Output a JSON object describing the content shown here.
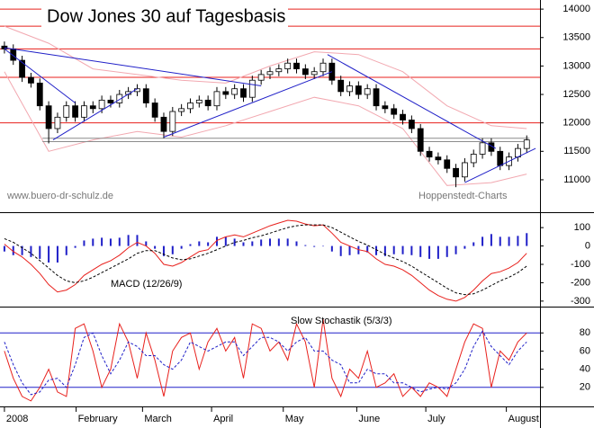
{
  "chart_data": [
    {
      "type": "candlestick",
      "title": "Dow Jones 30 auf Tagesbasis",
      "annotations": [
        "www.buero-dr-schulz.de",
        "Hoppenstedt-Charts"
      ],
      "xlim": [
        -0.5,
        60.5
      ],
      "ylim": [
        10430,
        14160
      ],
      "yticks": [
        11000,
        11500,
        12000,
        12500,
        13000,
        13500,
        14000
      ],
      "open": [
        13350,
        13300,
        13100,
        12800,
        12700,
        12300,
        11900,
        12100,
        12300,
        12100,
        12300,
        12250,
        12400,
        12350,
        12500,
        12550,
        12600,
        12350,
        12100,
        11850,
        12200,
        12250,
        12350,
        12400,
        12300,
        12550,
        12500,
        12600,
        12450,
        12750,
        12850,
        12900,
        12950,
        13050,
        12950,
        12850,
        12900,
        13050,
        12750,
        12550,
        12650,
        12500,
        12600,
        12300,
        12250,
        12150,
        12050,
        11900,
        11500,
        11400,
        11350,
        11200,
        11050,
        11300,
        11450,
        11650,
        11500,
        11250,
        11400,
        11550
      ],
      "high": [
        13430,
        13380,
        13180,
        12880,
        12780,
        12380,
        12180,
        12380,
        12380,
        12380,
        12380,
        12480,
        12480,
        12580,
        12630,
        12680,
        12680,
        12430,
        12180,
        12280,
        12330,
        12430,
        12480,
        12480,
        12630,
        12630,
        12680,
        12680,
        12830,
        12930,
        12980,
        13030,
        13130,
        13130,
        13030,
        12980,
        13130,
        13130,
        12830,
        12730,
        12730,
        12680,
        12680,
        12380,
        12330,
        12230,
        12130,
        11980,
        11580,
        11480,
        11430,
        11280,
        11380,
        11530,
        11730,
        11730,
        11580,
        11480,
        11630,
        11780
      ],
      "low": [
        13220,
        13020,
        12720,
        12620,
        12220,
        11640,
        11820,
        12020,
        12020,
        12020,
        12170,
        12170,
        12270,
        12270,
        12420,
        12470,
        12270,
        12020,
        11730,
        11770,
        12120,
        12170,
        12270,
        12220,
        12220,
        12420,
        12420,
        12370,
        12370,
        12670,
        12770,
        12820,
        12870,
        12870,
        12770,
        12770,
        12820,
        12670,
        12470,
        12470,
        12420,
        12420,
        12220,
        12170,
        12070,
        11970,
        11820,
        11420,
        11320,
        11270,
        11120,
        10870,
        10970,
        11220,
        11370,
        11420,
        11170,
        11170,
        11320,
        11470
      ],
      "close": [
        13300,
        13100,
        12800,
        12700,
        12300,
        11900,
        12100,
        12300,
        12100,
        12300,
        12250,
        12400,
        12350,
        12500,
        12550,
        12600,
        12350,
        12100,
        11850,
        12200,
        12250,
        12350,
        12400,
        12300,
        12550,
        12500,
        12600,
        12450,
        12750,
        12850,
        12900,
        12950,
        13050,
        12950,
        12850,
        12900,
        13050,
        12750,
        12550,
        12650,
        12500,
        12600,
        12300,
        12250,
        12150,
        12050,
        11900,
        11500,
        11400,
        11350,
        11200,
        11050,
        11300,
        11450,
        11650,
        11500,
        11250,
        11400,
        11550,
        11700
      ],
      "up_color": "#ffffff",
      "down_color": "#000000",
      "hlines": [
        14000,
        13700,
        13300,
        12800,
        12000
      ],
      "hline_color": "#e8201c",
      "support": {
        "x": [
          4.3,
          59.3
        ],
        "values": [
          11670,
          11730
        ],
        "color": "#8c8c8c"
      },
      "trend_color": "#2020c8",
      "trendlines": [
        {
          "x": [
            0,
            8
          ],
          "values": [
            13300,
            12350
          ]
        },
        {
          "x": [
            0,
            29
          ],
          "values": [
            13320,
            12650
          ]
        },
        {
          "x": [
            5.5,
            15
          ],
          "values": [
            11700,
            12600
          ]
        },
        {
          "x": [
            18,
            37
          ],
          "values": [
            11750,
            12900
          ]
        },
        {
          "x": [
            36.5,
            55.5
          ],
          "values": [
            13200,
            11550
          ]
        },
        {
          "x": [
            52,
            60
          ],
          "values": [
            10950,
            11550
          ]
        }
      ],
      "bands": [
        {
          "color": "#f2a8b0",
          "x": [
            0,
            5,
            10,
            15,
            20,
            25,
            30,
            35,
            40,
            45,
            50,
            55,
            59
          ],
          "values": [
            13700,
            13400,
            12950,
            12850,
            12750,
            12700,
            13000,
            13250,
            13200,
            12900,
            12300,
            11950,
            11900
          ]
        },
        {
          "color": "#f2a8b0",
          "x": [
            0,
            5,
            10,
            15,
            20,
            25,
            30,
            35,
            40,
            45,
            50,
            55,
            59
          ],
          "values": [
            12900,
            11500,
            11700,
            11850,
            11750,
            11950,
            12200,
            12450,
            12300,
            11900,
            10900,
            10950,
            11100
          ]
        }
      ]
    },
    {
      "type": "line",
      "title": "MACD (12/26/9)",
      "xlim": [
        -0.5,
        60.5
      ],
      "ylim": [
        -330,
        179
      ],
      "yticks": [
        100,
        0,
        -100,
        -200,
        -300
      ],
      "series": [
        {
          "kind": "bar",
          "color": "#2020c8",
          "values": [
            -30,
            -50,
            -50,
            -60,
            -70,
            -90,
            -90,
            -50,
            -10,
            30,
            40,
            45,
            40,
            45,
            60,
            60,
            25,
            -15,
            -55,
            -45,
            -15,
            10,
            25,
            20,
            50,
            50,
            40,
            20,
            25,
            35,
            40,
            40,
            40,
            25,
            5,
            -5,
            0,
            -30,
            -55,
            -50,
            -45,
            -35,
            -50,
            -55,
            -45,
            -45,
            -50,
            -60,
            -70,
            -70,
            -60,
            -45,
            -15,
            20,
            50,
            65,
            50,
            50,
            55,
            70
          ]
        },
        {
          "kind": "line",
          "color": "#e8201c",
          "values": [
            10,
            -30,
            -60,
            -100,
            -150,
            -210,
            -250,
            -240,
            -210,
            -160,
            -130,
            -100,
            -80,
            -50,
            -10,
            20,
            0,
            -40,
            -100,
            -110,
            -90,
            -60,
            -30,
            -20,
            30,
            50,
            60,
            50,
            70,
            90,
            110,
            125,
            140,
            135,
            120,
            110,
            115,
            70,
            20,
            0,
            -20,
            -30,
            -70,
            -100,
            -110,
            -130,
            -160,
            -200,
            -240,
            -270,
            -290,
            -300,
            -280,
            -240,
            -190,
            -150,
            -140,
            -120,
            -90,
            -40
          ]
        },
        {
          "kind": "line",
          "dash": true,
          "color": "#000000",
          "values": [
            40,
            20,
            -10,
            -40,
            -80,
            -120,
            -160,
            -190,
            -200,
            -190,
            -170,
            -145,
            -120,
            -95,
            -70,
            -40,
            -25,
            -25,
            -45,
            -65,
            -75,
            -70,
            -55,
            -40,
            -20,
            0,
            20,
            30,
            45,
            55,
            70,
            85,
            100,
            110,
            115,
            115,
            115,
            100,
            75,
            50,
            25,
            5,
            -20,
            -45,
            -65,
            -85,
            -110,
            -140,
            -170,
            -200,
            -230,
            -255,
            -265,
            -260,
            -240,
            -215,
            -190,
            -170,
            -145,
            -110
          ]
        }
      ]
    },
    {
      "type": "line",
      "title": "Slow Stochastik (5/3/3)",
      "xlim": [
        -0.5,
        60.5
      ],
      "ylim": [
        -1,
        108
      ],
      "yticks": [
        80,
        60,
        40,
        20
      ],
      "hlines": [
        80,
        20
      ],
      "hline_color": "#2020c8",
      "xticks": [
        {
          "value": 0,
          "label": "2008"
        },
        {
          "value": 8.1,
          "label": "February"
        },
        {
          "value": 15.6,
          "label": "March"
        },
        {
          "value": 23.4,
          "label": "April"
        },
        {
          "value": 31.5,
          "label": "May"
        },
        {
          "value": 39.8,
          "label": "June"
        },
        {
          "value": 47.6,
          "label": "July"
        },
        {
          "value": 56.7,
          "label": "August"
        }
      ],
      "series": [
        {
          "kind": "line",
          "color": "#e8201c",
          "values": [
            60,
            30,
            10,
            5,
            20,
            40,
            15,
            10,
            85,
            90,
            60,
            20,
            40,
            90,
            70,
            30,
            80,
            50,
            10,
            60,
            75,
            80,
            40,
            70,
            85,
            60,
            75,
            30,
            90,
            85,
            60,
            70,
            50,
            90,
            70,
            20,
            95,
            30,
            10,
            40,
            30,
            60,
            20,
            25,
            35,
            10,
            20,
            10,
            25,
            20,
            10,
            40,
            70,
            90,
            85,
            20,
            60,
            50,
            70,
            80
          ]
        },
        {
          "kind": "line",
          "dash": true,
          "color": "#2020c8",
          "values": [
            70,
            45,
            25,
            12,
            15,
            28,
            30,
            20,
            45,
            75,
            80,
            55,
            35,
            50,
            70,
            65,
            55,
            55,
            45,
            40,
            50,
            70,
            65,
            60,
            65,
            70,
            70,
            55,
            65,
            75,
            75,
            70,
            60,
            70,
            75,
            60,
            60,
            50,
            45,
            25,
            25,
            40,
            35,
            35,
            25,
            25,
            20,
            15,
            18,
            20,
            18,
            25,
            40,
            65,
            82,
            65,
            55,
            45,
            60,
            70
          ]
        }
      ]
    }
  ]
}
